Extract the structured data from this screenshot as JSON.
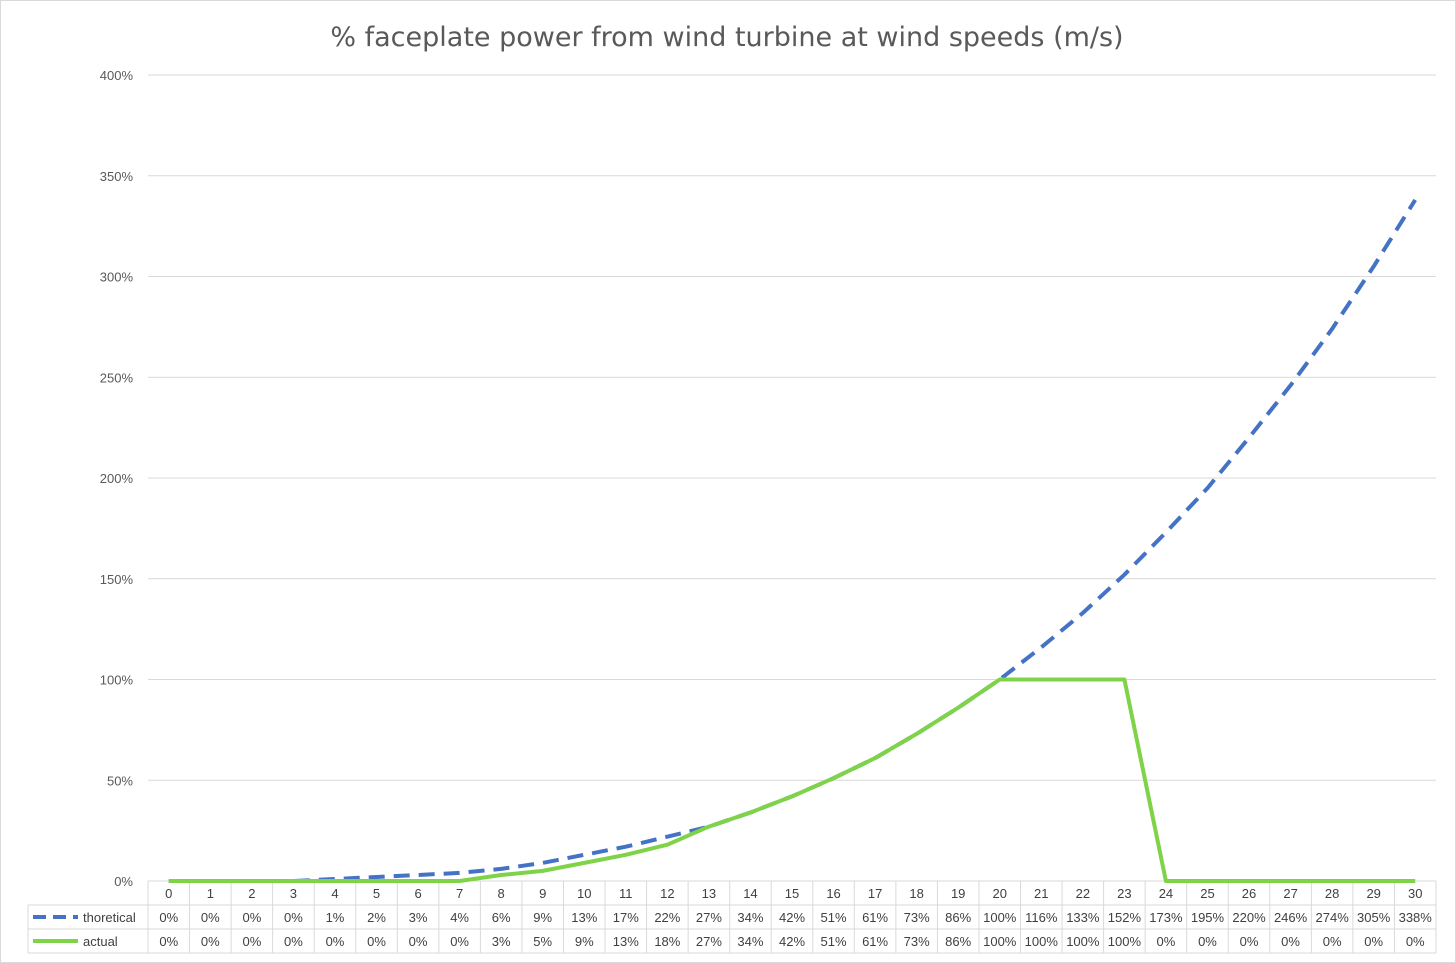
{
  "chart_data": {
    "type": "line",
    "title": "% faceplate power from wind turbine at wind speeds (m/s)",
    "xlabel": "",
    "ylabel": "",
    "ylim": [
      0,
      400
    ],
    "yticks": [
      "0%",
      "50%",
      "100%",
      "150%",
      "200%",
      "250%",
      "300%",
      "350%",
      "400%"
    ],
    "grid": true,
    "legend": "data-table-left",
    "x": [
      0,
      1,
      2,
      3,
      4,
      5,
      6,
      7,
      8,
      9,
      10,
      11,
      12,
      13,
      14,
      15,
      16,
      17,
      18,
      19,
      20,
      21,
      22,
      23,
      24,
      25,
      26,
      27,
      28,
      29,
      30
    ],
    "series": [
      {
        "name": "thoretical",
        "style": "dashed",
        "color": "#4472c4",
        "values": [
          0,
          0,
          0,
          0,
          1,
          2,
          3,
          4,
          6,
          9,
          13,
          17,
          22,
          27,
          34,
          42,
          51,
          61,
          73,
          86,
          100,
          116,
          133,
          152,
          173,
          195,
          220,
          246,
          274,
          305,
          338
        ],
        "labels": [
          "0%",
          "0%",
          "0%",
          "0%",
          "1%",
          "2%",
          "3%",
          "4%",
          "6%",
          "9%",
          "13%",
          "17%",
          "22%",
          "27%",
          "34%",
          "42%",
          "51%",
          "61%",
          "73%",
          "86%",
          "100%",
          "116%",
          "133%",
          "152%",
          "173%",
          "195%",
          "220%",
          "246%",
          "274%",
          "305%",
          "338%"
        ]
      },
      {
        "name": "actual",
        "style": "solid",
        "color": "#7ed348",
        "values": [
          0,
          0,
          0,
          0,
          0,
          0,
          0,
          0,
          3,
          5,
          9,
          13,
          18,
          27,
          34,
          42,
          51,
          61,
          73,
          86,
          100,
          100,
          100,
          100,
          0,
          0,
          0,
          0,
          0,
          0,
          0
        ],
        "labels": [
          "0%",
          "0%",
          "0%",
          "0%",
          "0%",
          "0%",
          "0%",
          "0%",
          "3%",
          "5%",
          "9%",
          "13%",
          "18%",
          "27%",
          "34%",
          "42%",
          "51%",
          "61%",
          "73%",
          "86%",
          "100%",
          "100%",
          "100%",
          "100%",
          "0%",
          "0%",
          "0%",
          "0%",
          "0%",
          "0%",
          "0%"
        ]
      }
    ]
  }
}
